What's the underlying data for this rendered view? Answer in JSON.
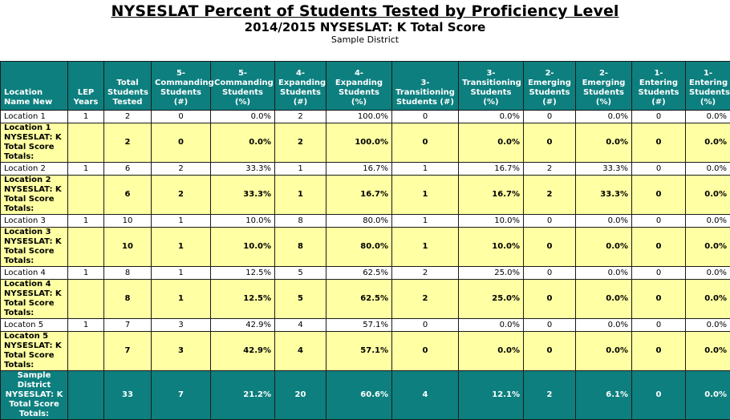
{
  "report": {
    "title": "NYSESLAT Percent of Students Tested by Proficiency Level",
    "subtitle": "2014/2015 NYSESLAT: K Total Score",
    "district": "Sample District"
  },
  "columns": [
    "Location Name New",
    "LEP Years",
    "Total Students Tested",
    "5- Commanding Students (#)",
    "5- Commanding Students (%)",
    "4- Expanding Students (#)",
    "4- Expanding Students (%)",
    "3- Transitioning Students (#)",
    "3- Transitioning Students (%)",
    "2- Emerging Students (#)",
    "2- Emerging Students (%)",
    "1- Entering Students (#)",
    "1- Entering Students (%)"
  ],
  "rows": [
    {
      "type": "detail",
      "cells": [
        "Location 1",
        "1",
        "2",
        "0",
        "0.0%",
        "2",
        "100.0%",
        "0",
        "0.0%",
        "0",
        "0.0%",
        "0",
        "0.0%"
      ]
    },
    {
      "type": "total",
      "cells": [
        "Location 1 NYSESLAT: K Total Score Totals:",
        "",
        "2",
        "0",
        "0.0%",
        "2",
        "100.0%",
        "0",
        "0.0%",
        "0",
        "0.0%",
        "0",
        "0.0%"
      ]
    },
    {
      "type": "detail",
      "cells": [
        "Location 2",
        "1",
        "6",
        "2",
        "33.3%",
        "1",
        "16.7%",
        "1",
        "16.7%",
        "2",
        "33.3%",
        "0",
        "0.0%"
      ]
    },
    {
      "type": "total",
      "cells": [
        "Location 2 NYSESLAT: K Total Score Totals:",
        "",
        "6",
        "2",
        "33.3%",
        "1",
        "16.7%",
        "1",
        "16.7%",
        "2",
        "33.3%",
        "0",
        "0.0%"
      ]
    },
    {
      "type": "detail",
      "cells": [
        "Location 3",
        "1",
        "10",
        "1",
        "10.0%",
        "8",
        "80.0%",
        "1",
        "10.0%",
        "0",
        "0.0%",
        "0",
        "0.0%"
      ]
    },
    {
      "type": "total",
      "cells": [
        "Location 3 NYSESLAT: K Total Score Totals:",
        "",
        "10",
        "1",
        "10.0%",
        "8",
        "80.0%",
        "1",
        "10.0%",
        "0",
        "0.0%",
        "0",
        "0.0%"
      ]
    },
    {
      "type": "detail",
      "cells": [
        "Location 4",
        "1",
        "8",
        "1",
        "12.5%",
        "5",
        "62.5%",
        "2",
        "25.0%",
        "0",
        "0.0%",
        "0",
        "0.0%"
      ]
    },
    {
      "type": "total",
      "cells": [
        "Location 4 NYSESLAT: K Total Score Totals:",
        "",
        "8",
        "1",
        "12.5%",
        "5",
        "62.5%",
        "2",
        "25.0%",
        "0",
        "0.0%",
        "0",
        "0.0%"
      ]
    },
    {
      "type": "detail",
      "cells": [
        "Locaton 5",
        "1",
        "7",
        "3",
        "42.9%",
        "4",
        "57.1%",
        "0",
        "0.0%",
        "0",
        "0.0%",
        "0",
        "0.0%"
      ]
    },
    {
      "type": "total",
      "cells": [
        "Locaton 5 NYSESLAT: K Total Score Totals:",
        "",
        "7",
        "3",
        "42.9%",
        "4",
        "57.1%",
        "0",
        "0.0%",
        "0",
        "0.0%",
        "0",
        "0.0%"
      ]
    },
    {
      "type": "grand",
      "cells": [
        "Sample District NYSESLAT: K Total Score Totals:",
        "",
        "33",
        "7",
        "21.2%",
        "20",
        "60.6%",
        "4",
        "12.1%",
        "2",
        "6.1%",
        "0",
        "0.0%"
      ]
    }
  ]
}
